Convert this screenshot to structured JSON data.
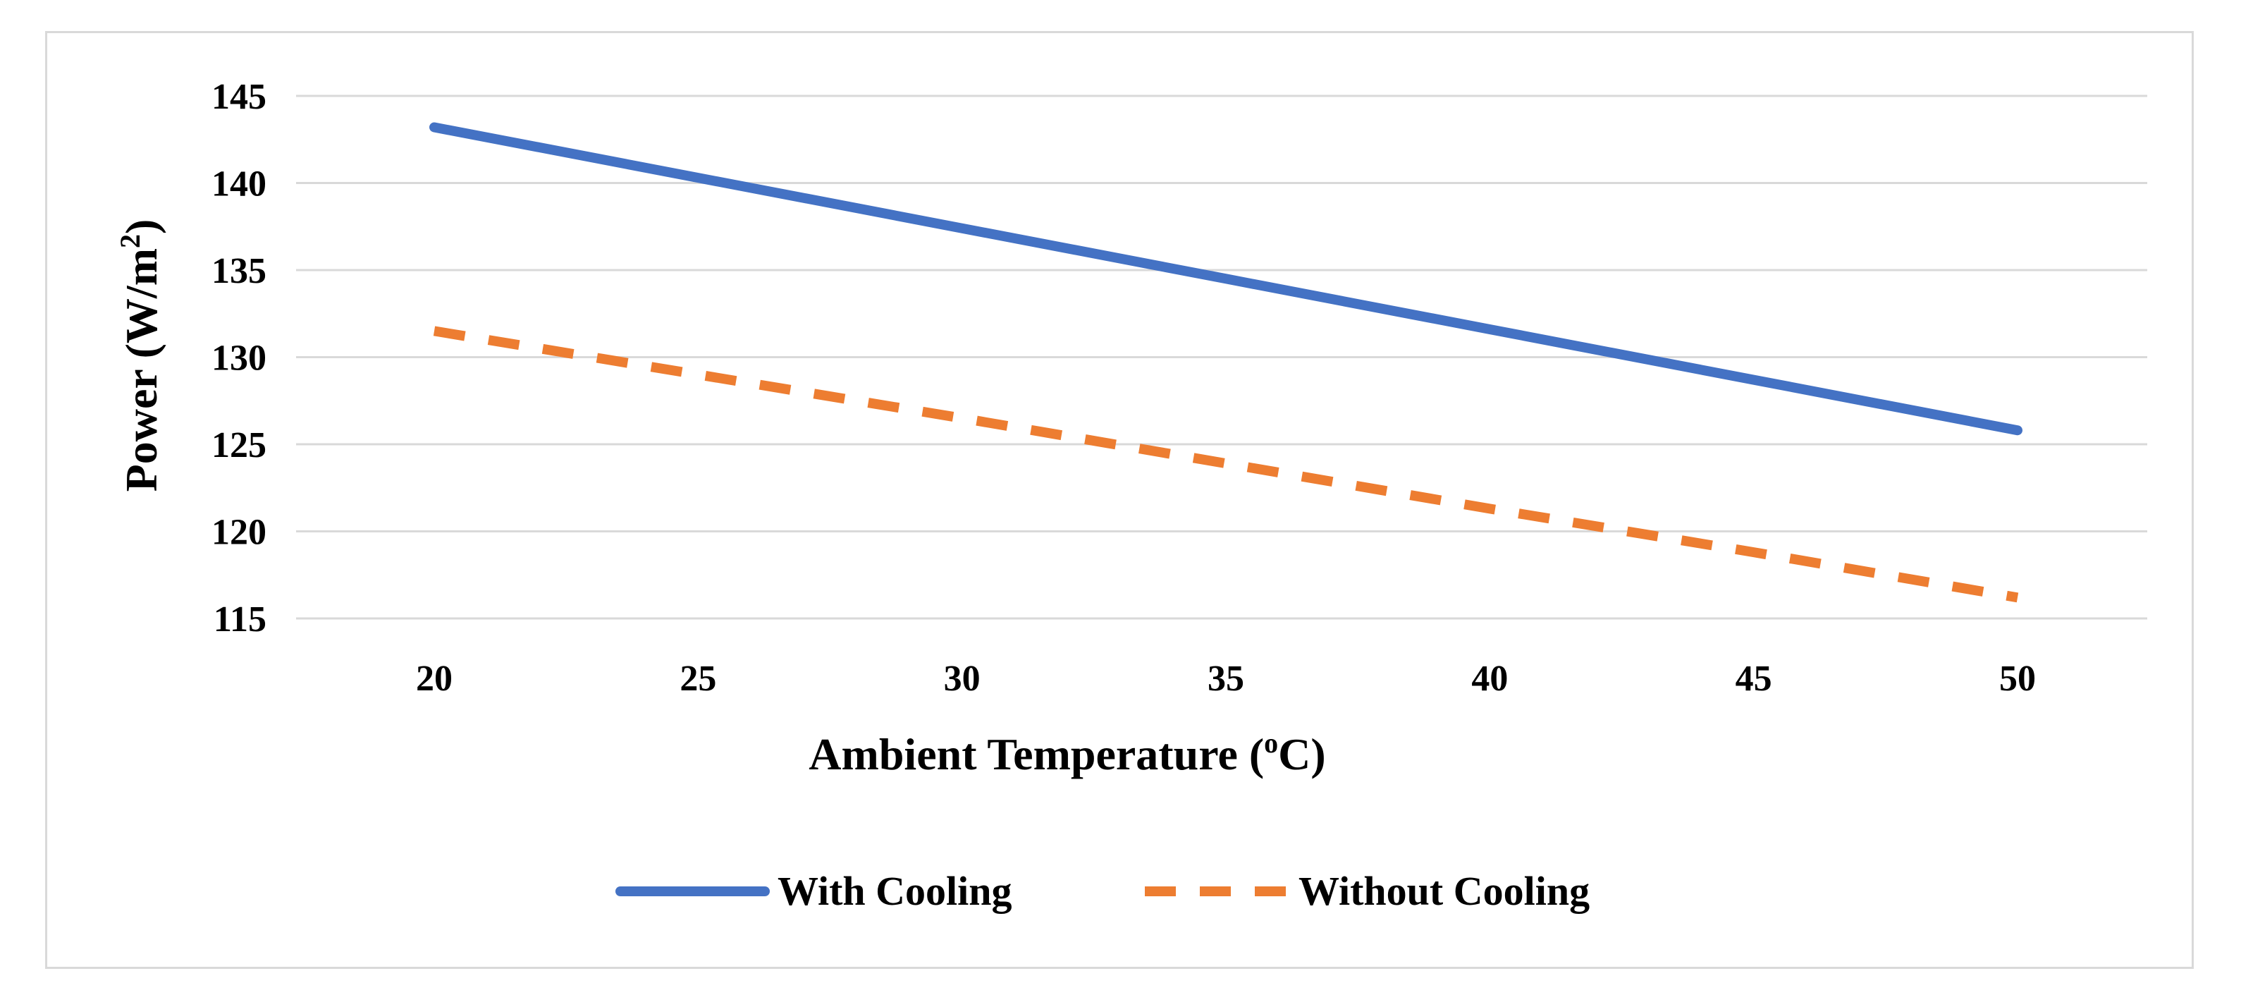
{
  "chart_data": {
    "type": "line",
    "title": "",
    "xlabel": "Ambient Temperature (",
    "xlabel_unit_sup": "o",
    "xlabel_unit_tail": "C)",
    "ylabel": "Power (W/m",
    "ylabel_sup": "2",
    "ylabel_tail": ")",
    "x": [
      20,
      25,
      30,
      35,
      40,
      45,
      50
    ],
    "xlim": [
      20,
      50
    ],
    "ylim": [
      115,
      145
    ],
    "yticks": [
      115,
      120,
      125,
      130,
      135,
      140,
      145
    ],
    "xtick_labels": [
      "20",
      "25",
      "30",
      "35",
      "40",
      "45",
      "50"
    ],
    "ytick_labels": [
      "115",
      "120",
      "125",
      "130",
      "135",
      "140",
      "145"
    ],
    "grid": true,
    "legend_position": "bottom-center",
    "series": [
      {
        "name": "With Cooling",
        "values": [
          143.2,
          140.3,
          137.4,
          134.5,
          131.6,
          128.7,
          125.8
        ],
        "color": "#4472C4",
        "style": "solid"
      },
      {
        "name": "Without Cooling",
        "values": [
          131.5,
          129.0,
          126.5,
          123.9,
          121.3,
          118.8,
          116.2
        ],
        "color": "#ED7D31",
        "style": "dashed"
      }
    ]
  },
  "colors": {
    "gridline": "#d9d9d9",
    "frame": "#d9d9d9",
    "text": "#000000"
  }
}
